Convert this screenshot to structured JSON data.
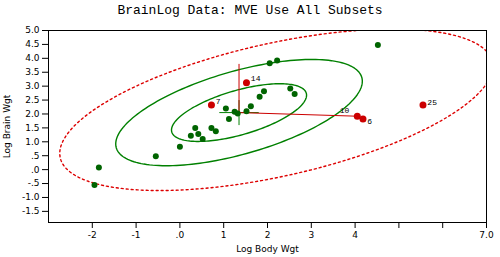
{
  "chart_data": {
    "type": "scatter",
    "title": "BrainLog Data:  MVE Use All Subsets",
    "xlabel": "Log Body Wgt",
    "ylabel": "Log Brain Wgt",
    "xlim": [
      -3.0,
      7.0
    ],
    "ylim": [
      -1.9,
      5.0
    ],
    "xticks": [
      -2,
      -1,
      {
        "value": 0,
        "label": ".0"
      },
      1,
      2,
      3,
      4,
      {
        "value": 5,
        "label": null
      },
      {
        "value": 6,
        "label": null
      },
      {
        "value": 7,
        "label": "7.0"
      }
    ],
    "yticks": [
      -1.5,
      {
        "value": -1.0,
        "label": "-1.0"
      },
      {
        "value": -0.5,
        "label": "-.5"
      },
      {
        "value": 0.0,
        "label": ".0"
      },
      {
        "value": 0.5,
        "label": ".5"
      },
      {
        "value": 1.0,
        "label": "1.0"
      },
      1.5,
      {
        "value": 2.0,
        "label": "2.0"
      },
      2.5,
      {
        "value": 3.0,
        "label": "3.0"
      },
      3.5,
      {
        "value": 4.0,
        "label": "4.0"
      },
      4.5,
      {
        "value": 5.0,
        "label": "5.0"
      }
    ],
    "grid": false,
    "ellipses": [
      {
        "cx": 2.2,
        "cy": 2.15,
        "width": 10.5,
        "height": 4.6,
        "angle": 22,
        "color": "#dd0000",
        "line_style": "dotted"
      },
      {
        "cx": 1.35,
        "cy": 2.05,
        "width": 6.2,
        "height": 2.8,
        "angle": 28,
        "color": "#008000",
        "line_style": "solid"
      },
      {
        "cx": 1.35,
        "cy": 2.05,
        "width": 3.4,
        "height": 1.5,
        "angle": 28,
        "color": "#008000",
        "line_style": "solid"
      }
    ],
    "lines": [
      {
        "color": "#008000",
        "values": [
          [
            [
              0.9,
              2.05
            ],
            [
              1.8,
              2.05
            ]
          ],
          [
            [
              1.35,
              1.6
            ],
            [
              1.35,
              2.5
            ]
          ]
        ]
      },
      {
        "color": "#cc0000",
        "values": [
          [
            [
              1.35,
              3.8
            ],
            [
              1.35,
              2.05
            ]
          ],
          [
            [
              1.35,
              2.05
            ],
            [
              4.05,
              1.92
            ]
          ]
        ]
      }
    ],
    "points": [
      {
        "color": "#006400",
        "marker": "circle",
        "values": [
          [
            -1.95,
            -0.55
          ],
          [
            -1.85,
            0.08
          ],
          [
            -0.55,
            0.48
          ],
          [
            0.0,
            0.82
          ],
          [
            0.25,
            1.22
          ],
          [
            0.35,
            1.5
          ],
          [
            0.42,
            1.28
          ],
          [
            0.52,
            1.1
          ],
          [
            0.72,
            1.5
          ],
          [
            0.82,
            1.38
          ],
          [
            1.05,
            2.2
          ],
          [
            1.12,
            1.82
          ],
          [
            1.25,
            2.08
          ],
          [
            1.32,
            2.02
          ],
          [
            1.52,
            2.1
          ],
          [
            1.62,
            2.28
          ],
          [
            1.82,
            2.62
          ],
          [
            1.92,
            2.82
          ],
          [
            2.05,
            3.82
          ],
          [
            2.22,
            3.92
          ],
          [
            2.52,
            2.92
          ],
          [
            2.62,
            2.72
          ],
          [
            4.52,
            4.48
          ]
        ]
      },
      {
        "color": "#cc0000",
        "marker": "circle",
        "values": [
          [
            1.52,
            3.12
          ],
          [
            0.72,
            2.32
          ],
          [
            4.05,
            1.92
          ],
          [
            4.18,
            1.82
          ],
          [
            5.55,
            2.32
          ]
        ],
        "labels": [
          "14",
          "7",
          "10",
          "6",
          "25"
        ],
        "label_positions": [
          [
            1.62,
            3.17
          ],
          [
            0.82,
            2.37
          ],
          [
            3.65,
            2.04
          ],
          [
            4.28,
            1.64
          ],
          [
            5.65,
            2.32
          ]
        ]
      }
    ]
  }
}
